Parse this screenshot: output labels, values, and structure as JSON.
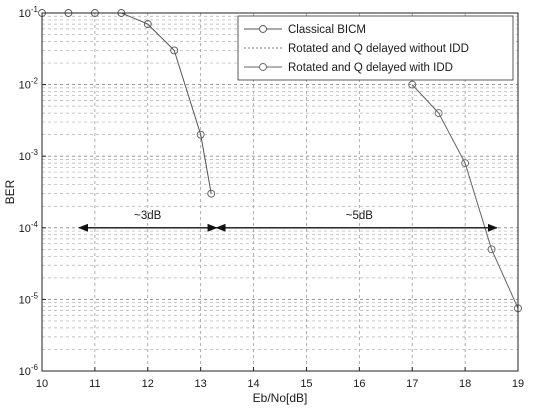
{
  "chart_data": {
    "type": "line",
    "title": "",
    "xlabel": "Eb/No[dB]",
    "ylabel": "BER",
    "xlim": [
      10,
      19
    ],
    "ylim": [
      1e-06,
      0.1
    ],
    "yscale": "log",
    "grid": true,
    "legend_position": "top-right",
    "x_ticks": [
      "10",
      "11",
      "12",
      "13",
      "14",
      "15",
      "16",
      "17",
      "18",
      "19"
    ],
    "y_ticks": [
      {
        "base": "10",
        "exp": "-1"
      },
      {
        "base": "10",
        "exp": "-2"
      },
      {
        "base": "10",
        "exp": "-3"
      },
      {
        "base": "10",
        "exp": "-4"
      },
      {
        "base": "10",
        "exp": "-5"
      },
      {
        "base": "10",
        "exp": "-6"
      }
    ],
    "series": [
      {
        "name": "Classical BICM",
        "color": "#555555",
        "marker": "circle",
        "dash": "none",
        "x": [
          10,
          10.5,
          11,
          11.5,
          12,
          12.5,
          13,
          13.2
        ],
        "y": [
          0.1,
          0.1,
          0.1,
          0.1,
          0.07,
          0.03,
          0.002,
          0.0003
        ]
      },
      {
        "name": "Rotated and Q delayed without IDD",
        "color": "#777777",
        "marker": "none",
        "dash": "2,2",
        "x": [
          10,
          11,
          12,
          13,
          14,
          15,
          16,
          17,
          17.5
        ],
        "y": [
          0.1,
          0.1,
          0.1,
          0.1,
          0.1,
          0.1,
          0.1,
          0.1,
          0.1
        ]
      },
      {
        "name": "Rotated and Q delayed with IDD",
        "color": "#666666",
        "marker": "circle",
        "dash": "none",
        "x": [
          17,
          17.5,
          18,
          18.5,
          19
        ],
        "y": [
          0.01,
          0.004,
          0.0008,
          5e-05,
          7.5e-06
        ]
      }
    ],
    "annotations": [
      {
        "text": "~3dB",
        "x_from": 10.7,
        "x_to": 13.3,
        "y": 0.0001,
        "label_x": 12.0
      },
      {
        "text": "~5dB",
        "x_from": 13.3,
        "x_to": 18.6,
        "y": 0.0001,
        "label_x": 16.0
      }
    ]
  }
}
